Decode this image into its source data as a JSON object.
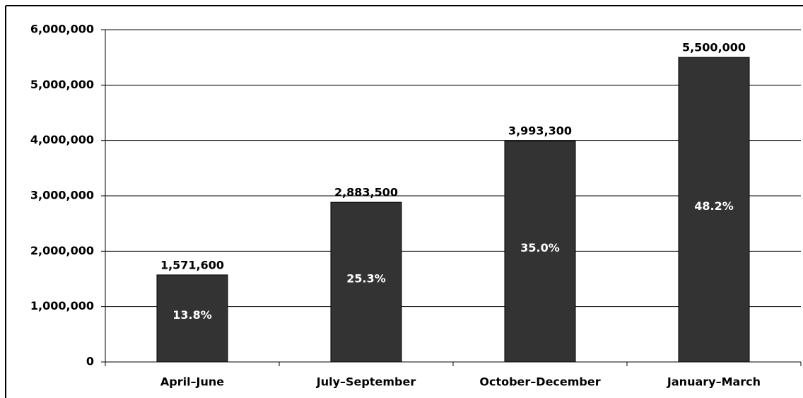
{
  "chart_data": {
    "type": "bar",
    "categories": [
      "April–June",
      "July–September",
      "October–December",
      "January–March"
    ],
    "values": [
      1571600,
      2883500,
      3993300,
      5500000
    ],
    "value_labels": [
      "1,571,600",
      "2,883,500",
      "3,993,300",
      "5,500,000"
    ],
    "shares": {
      "values": [
        13.8,
        25.3,
        35.0,
        48.2
      ],
      "value_labels": [
        "13.8%",
        "25.3%",
        "35.0%",
        "48.2%"
      ]
    },
    "color": "#333333",
    "ylim": [
      0,
      6000000
    ],
    "yticks": [
      0,
      {
        "value": 1000000,
        "label": "1,000,000"
      },
      {
        "value": 2000000,
        "label": "2,000,000"
      },
      {
        "value": 3000000,
        "label": "3,000,000"
      },
      {
        "value": 4000000,
        "label": "4,000,000"
      },
      {
        "value": 5000000,
        "label": "5,000,000"
      },
      {
        "value": 6000000,
        "label": "6,000,000"
      }
    ],
    "grid": true
  }
}
